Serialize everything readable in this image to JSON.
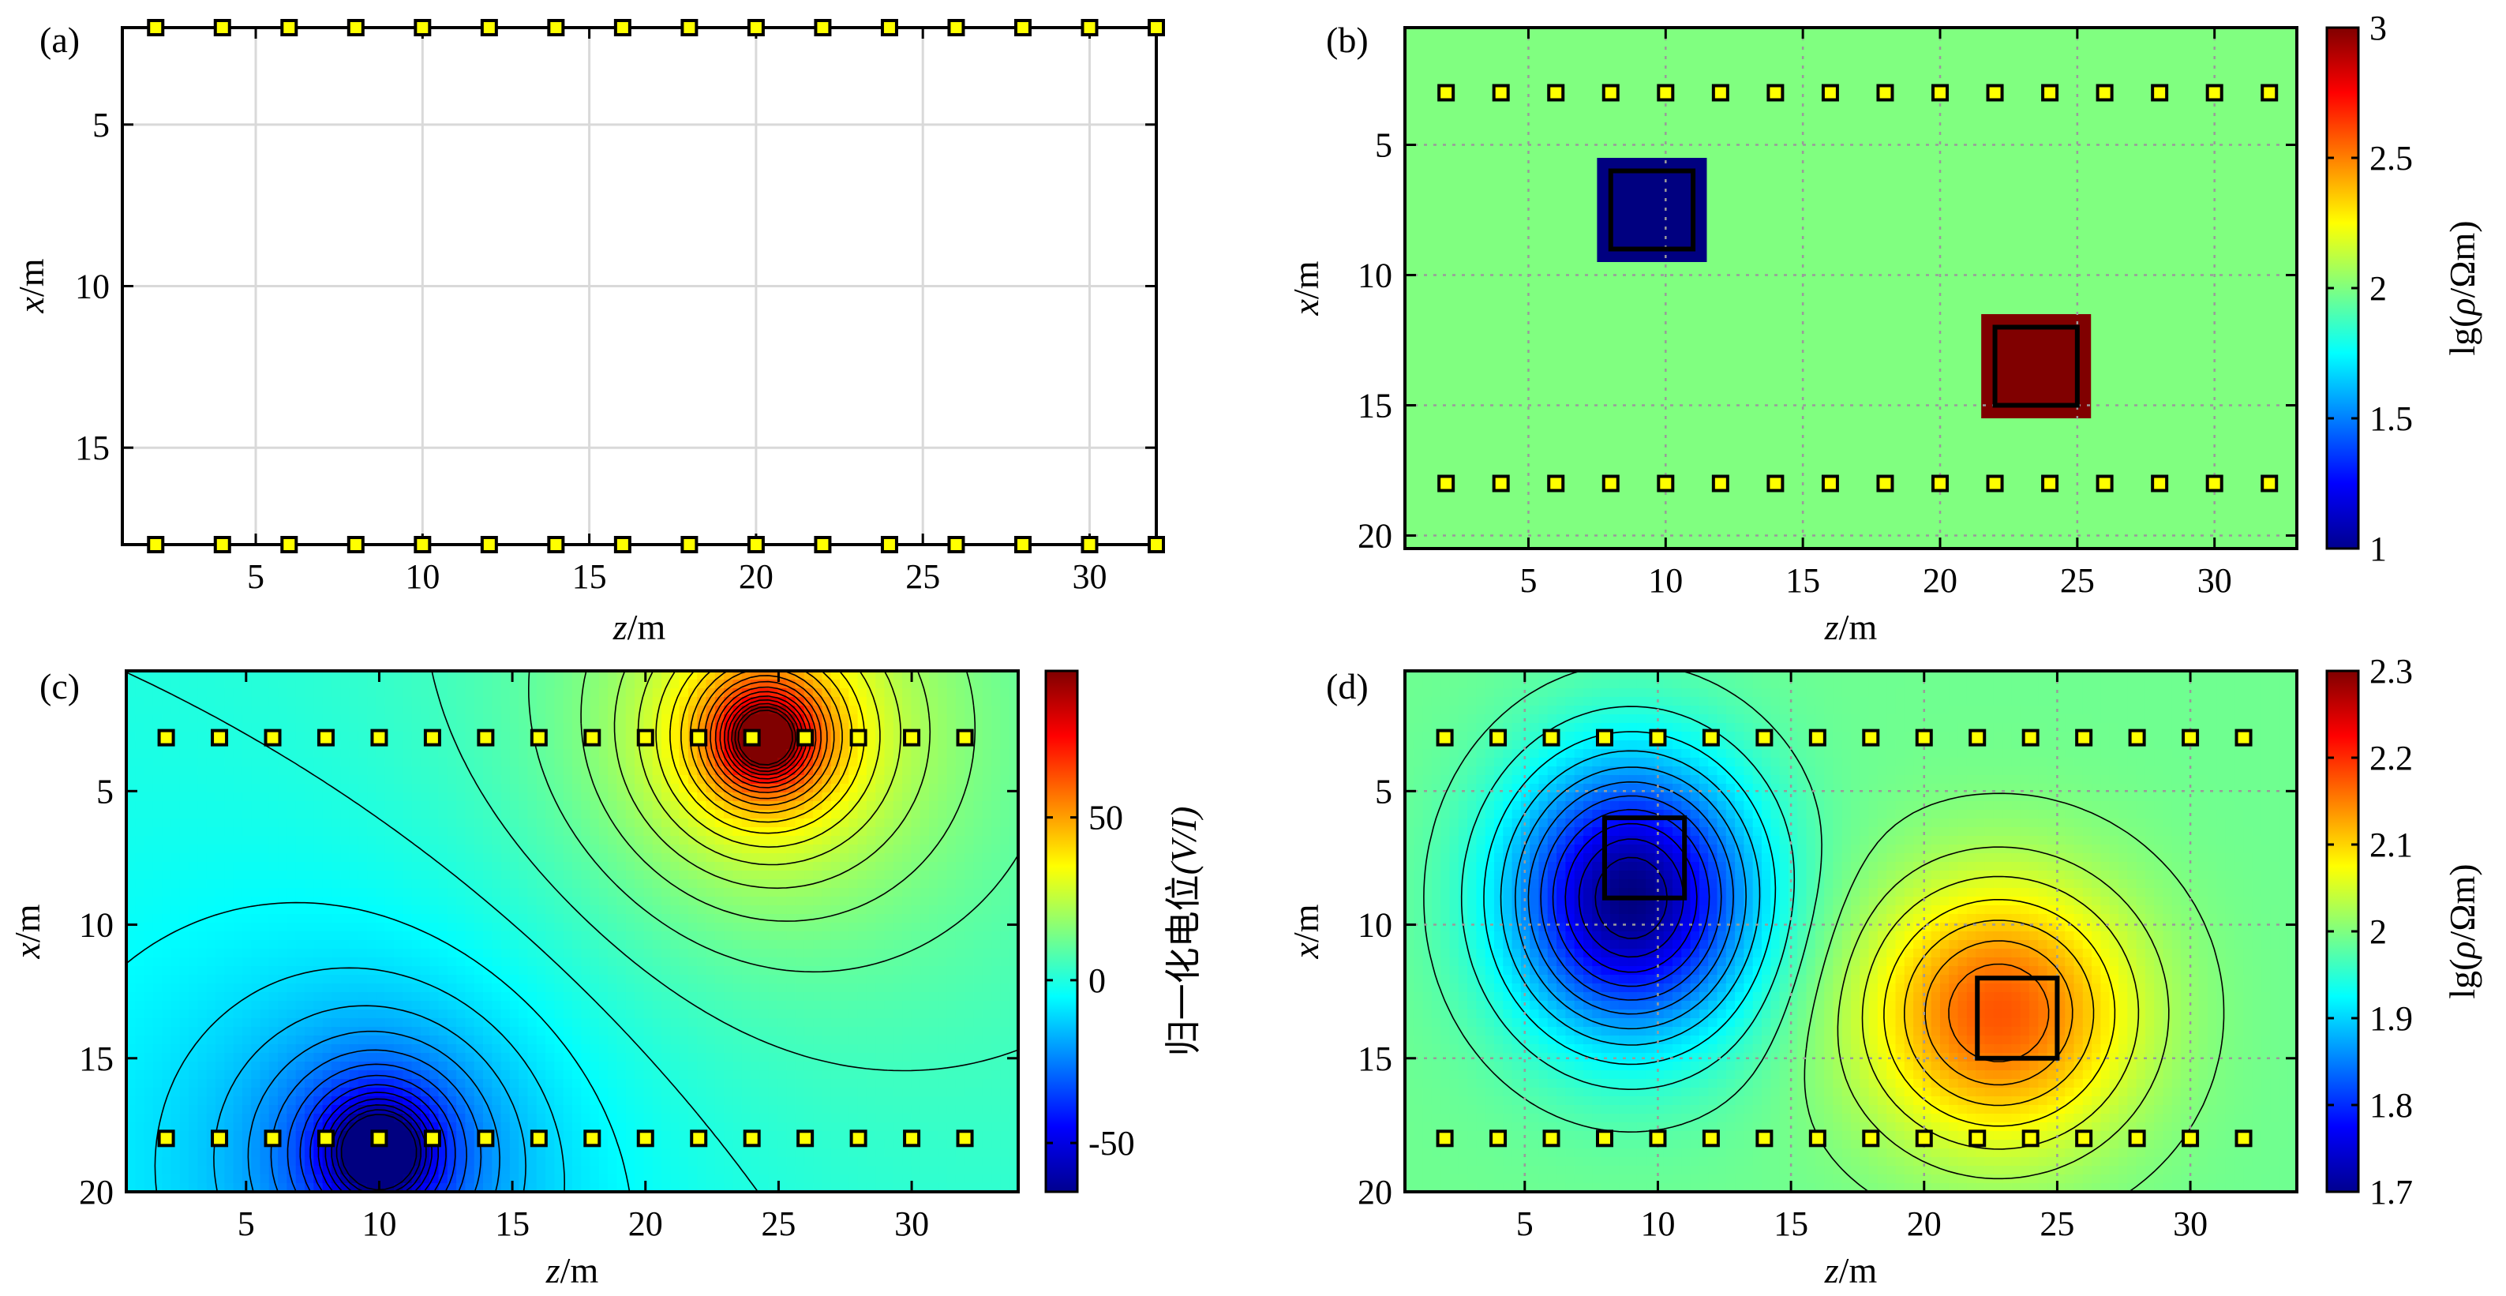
{
  "chart_data": [
    {
      "panel": "(a)",
      "type": "scatter",
      "title": "",
      "xlabel_italic": "z",
      "xlabel_unit": "/m",
      "ylabel_italic": "x",
      "ylabel_unit": "/m",
      "xlim": [
        1,
        32
      ],
      "ylim": [
        18,
        2
      ],
      "xticks": [
        5,
        10,
        15,
        20,
        25,
        30
      ],
      "yticks": [
        5,
        10,
        15
      ],
      "grid": true,
      "electrodes": {
        "z": [
          2,
          4,
          6,
          8,
          10,
          12,
          14,
          16,
          18,
          20,
          22,
          24,
          26,
          28,
          30,
          32
        ],
        "x_rows": [
          2,
          18
        ]
      }
    },
    {
      "panel": "(b)",
      "type": "heatmap",
      "xlabel_italic": "z",
      "xlabel_unit": "/m",
      "ylabel_italic": "x",
      "ylabel_unit": "/m",
      "xlim": [
        0.5,
        33
      ],
      "ylim": [
        20.5,
        0.5
      ],
      "xticks": [
        5,
        10,
        15,
        20,
        25,
        30
      ],
      "yticks": [
        5,
        10,
        15,
        20
      ],
      "grid": true,
      "background_value": 2,
      "anomalies": [
        {
          "z": [
            8,
            11
          ],
          "x": [
            6,
            9
          ],
          "value": 1
        },
        {
          "z": [
            22,
            25
          ],
          "x": [
            12,
            15
          ],
          "value": 3
        }
      ],
      "electrodes": {
        "z": [
          2,
          4,
          6,
          8,
          10,
          12,
          14,
          16,
          18,
          20,
          22,
          24,
          26,
          28,
          30,
          32
        ],
        "x_rows": [
          3,
          18
        ]
      },
      "colorbar": {
        "label_prefix": "lg(",
        "label_rho": "ρ",
        "label_suffix": "/Ωm)",
        "range": [
          1,
          3
        ],
        "ticks": [
          "1",
          "1.5",
          "2",
          "2.5",
          "3"
        ]
      }
    },
    {
      "panel": "(c)",
      "type": "heatmap",
      "subtype": "contour",
      "xlabel_italic": "z",
      "xlabel_unit": "/m",
      "ylabel_italic": "x",
      "ylabel_unit": "/m",
      "xlim": [
        0.5,
        34
      ],
      "ylim": [
        20,
        0.5
      ],
      "xticks": [
        5,
        10,
        15,
        20,
        25,
        30
      ],
      "yticks": [
        5,
        10,
        15,
        20
      ],
      "grid": false,
      "sources": [
        {
          "z": 24.5,
          "x": 3,
          "strength": 9500
        },
        {
          "z": 10,
          "x": 18.5,
          "strength": -8000
        }
      ],
      "contour_interval": 5,
      "electrodes": {
        "z": [
          2,
          4,
          6,
          8,
          10,
          12,
          14,
          16,
          18,
          20,
          22,
          24,
          26,
          28,
          30,
          32
        ],
        "x_rows": [
          3,
          18
        ]
      },
      "colorbar": {
        "label": "归一化电位",
        "label_italic": "(V/I)",
        "range": [
          -65,
          95
        ],
        "ticks": [
          "-50",
          "0",
          "50"
        ]
      }
    },
    {
      "panel": "(d)",
      "type": "heatmap",
      "subtype": "contour",
      "xlabel_italic": "z",
      "xlabel_unit": "/m",
      "ylabel_italic": "x",
      "ylabel_unit": "/m",
      "xlim": [
        0.5,
        34
      ],
      "ylim": [
        20,
        0.5
      ],
      "xticks": [
        5,
        10,
        15,
        20,
        25,
        30
      ],
      "yticks": [
        5,
        10,
        15,
        20
      ],
      "grid": true,
      "background_value": 1.99,
      "blobs": [
        {
          "z": 9,
          "x": 9,
          "amp": -0.29,
          "sz": 3.2,
          "sx": 3.6
        },
        {
          "z": 22.8,
          "x": 13.3,
          "amp": 0.185,
          "sz": 3.5,
          "sx": 3.4
        }
      ],
      "contour_interval": 0.025,
      "anomaly_outlines": [
        {
          "z": [
            8,
            11
          ],
          "x": [
            6,
            9
          ]
        },
        {
          "z": [
            22,
            25
          ],
          "x": [
            12,
            15
          ]
        }
      ],
      "electrodes": {
        "z": [
          2,
          4,
          6,
          8,
          10,
          12,
          14,
          16,
          18,
          20,
          22,
          24,
          26,
          28,
          30,
          32
        ],
        "x_rows": [
          3,
          18
        ]
      },
      "colorbar": {
        "label_prefix": "lg(",
        "label_rho": "ρ",
        "label_suffix": "/Ωm)",
        "range": [
          1.7,
          2.3
        ],
        "ticks": [
          "1.7",
          "1.8",
          "1.9",
          "2",
          "2.1",
          "2.2",
          "2.3"
        ]
      }
    }
  ]
}
